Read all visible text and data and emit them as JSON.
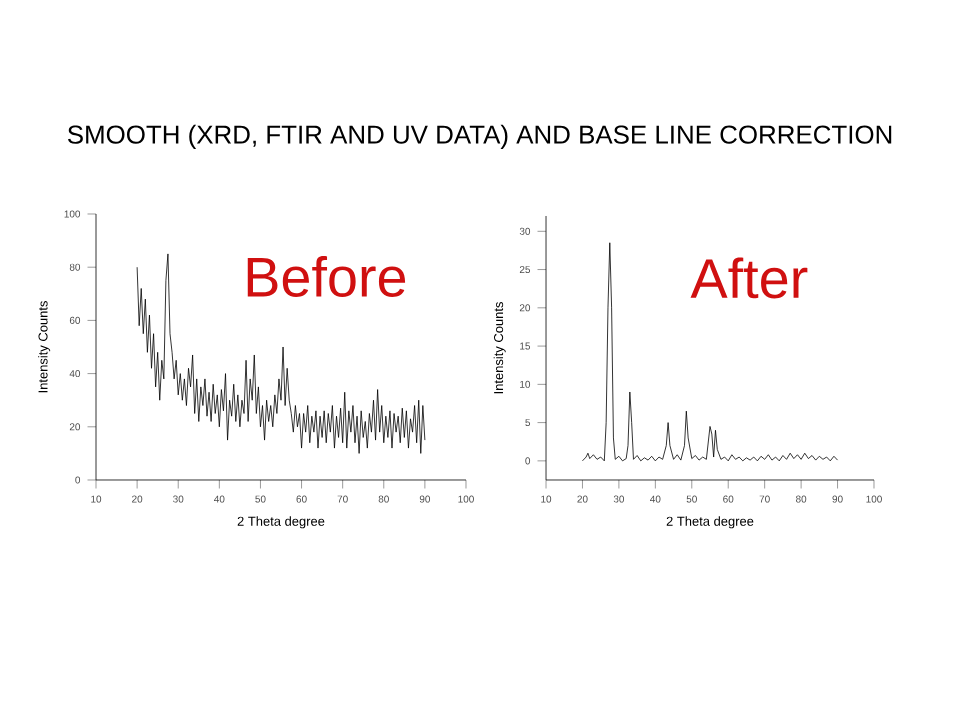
{
  "chart_data": [
    {
      "type": "line",
      "title": "Before",
      "xlabel": "2 Theta degree",
      "ylabel": "Intensity Counts",
      "annotations": [
        "SMOOTH (XRD, FTIR AND UV DATA) AND BASE LINE CORRECTION"
      ],
      "xlim": [
        10,
        100
      ],
      "xticks": [
        10,
        20,
        30,
        40,
        50,
        60,
        70,
        80,
        90,
        100
      ],
      "ylim": [
        0,
        100
      ],
      "yticks": [
        0,
        20,
        40,
        60,
        80,
        100
      ],
      "x": [
        20,
        20.5,
        21,
        21.5,
        22,
        22.5,
        23,
        23.5,
        24,
        24.5,
        25,
        25.5,
        26,
        26.5,
        27,
        27.5,
        28,
        28.5,
        29,
        29.5,
        30,
        30.5,
        31,
        31.5,
        32,
        32.5,
        33,
        33.5,
        34,
        34.5,
        35,
        35.5,
        36,
        36.5,
        37,
        37.5,
        38,
        38.5,
        39,
        39.5,
        40,
        40.5,
        41,
        41.5,
        42,
        42.5,
        43,
        43.5,
        44,
        44.5,
        45,
        45.5,
        46,
        46.5,
        47,
        47.5,
        48,
        48.5,
        49,
        49.5,
        50,
        50.5,
        51,
        51.5,
        52,
        52.5,
        53,
        53.5,
        54,
        54.5,
        55,
        55.5,
        56,
        56.5,
        57,
        57.5,
        58,
        58.5,
        59,
        59.5,
        60,
        60.5,
        61,
        61.5,
        62,
        62.5,
        63,
        63.5,
        64,
        64.5,
        65,
        65.5,
        66,
        66.5,
        67,
        67.5,
        68,
        68.5,
        69,
        69.5,
        70,
        70.5,
        71,
        71.5,
        72,
        72.5,
        73,
        73.5,
        74,
        74.5,
        75,
        75.5,
        76,
        76.5,
        77,
        77.5,
        78,
        78.5,
        79,
        79.5,
        80,
        80.5,
        81,
        81.5,
        82,
        82.5,
        83,
        83.5,
        84,
        84.5,
        85,
        85.5,
        86,
        86.5,
        87,
        87.5,
        88,
        88.5,
        89,
        89.5,
        90
      ],
      "series": [
        {
          "color": "#000000",
          "values": [
            80,
            58,
            72,
            55,
            68,
            48,
            62,
            42,
            55,
            35,
            48,
            30,
            45,
            38,
            75,
            85,
            55,
            48,
            38,
            45,
            32,
            40,
            30,
            38,
            28,
            42,
            35,
            47,
            25,
            38,
            22,
            35,
            28,
            38,
            24,
            33,
            22,
            36,
            25,
            32,
            20,
            34,
            26,
            40,
            15,
            30,
            24,
            36,
            22,
            32,
            20,
            30,
            25,
            45,
            22,
            38,
            30,
            47,
            25,
            35,
            20,
            28,
            15,
            30,
            22,
            28,
            20,
            32,
            25,
            38,
            30,
            50,
            28,
            42,
            30,
            25,
            18,
            28,
            20,
            25,
            12,
            25,
            18,
            28,
            14,
            24,
            18,
            26,
            12,
            24,
            16,
            26,
            14,
            25,
            18,
            28,
            12,
            24,
            16,
            27,
            14,
            33,
            12,
            26,
            18,
            28,
            14,
            24,
            10,
            26,
            16,
            22,
            12,
            25,
            18,
            30,
            15,
            34,
            18,
            28,
            14,
            24,
            16,
            26,
            12,
            25,
            18,
            24,
            14,
            27,
            16,
            26,
            12,
            23,
            18,
            28,
            14,
            30,
            10,
            28,
            15
          ]
        }
      ]
    },
    {
      "type": "line",
      "title": "After",
      "xlabel": "2 Theta degree",
      "ylabel": "Intensity Counts",
      "xlim": [
        10,
        100
      ],
      "xticks": [
        10,
        20,
        30,
        40,
        50,
        60,
        70,
        80,
        90,
        100
      ],
      "ylim": [
        -2.5,
        32
      ],
      "yticks": [
        0,
        5,
        10,
        15,
        20,
        25,
        30
      ],
      "x": [
        20,
        21,
        21.5,
        22,
        23,
        24,
        25,
        26,
        26.5,
        27,
        27.5,
        28,
        28.5,
        29,
        30,
        31,
        32,
        32.5,
        33,
        33.5,
        34,
        35,
        36,
        37,
        38,
        39,
        40,
        41,
        42,
        43,
        43.5,
        44,
        45,
        46,
        47,
        48,
        48.5,
        49,
        50,
        51,
        52,
        53,
        54,
        55,
        55.5,
        56,
        56.5,
        57,
        58,
        59,
        60,
        61,
        62,
        63,
        64,
        65,
        66,
        67,
        68,
        69,
        70,
        71,
        72,
        73,
        74,
        75,
        76,
        77,
        78,
        79,
        80,
        81,
        82,
        83,
        84,
        85,
        86,
        87,
        88,
        89,
        90
      ],
      "series": [
        {
          "color": "#000000",
          "values": [
            0,
            0.5,
            1,
            0.3,
            0.8,
            0.2,
            0.5,
            0,
            5,
            20,
            28.5,
            20,
            3,
            0.2,
            0.6,
            0,
            0.3,
            2,
            9,
            5,
            0.2,
            0.7,
            0,
            0.4,
            0.1,
            0.6,
            0,
            0.5,
            0.2,
            2,
            5,
            2,
            0.2,
            0.8,
            0.1,
            2,
            6.5,
            3,
            0.3,
            0.7,
            0.1,
            0.5,
            0.2,
            4.5,
            3.5,
            0.5,
            4,
            1.5,
            0.2,
            0.5,
            0,
            0.8,
            0.2,
            0.5,
            0,
            0.4,
            0.1,
            0.5,
            0,
            0.6,
            0.2,
            0.8,
            0.1,
            0.5,
            0,
            0.7,
            0.2,
            1,
            0.3,
            0.8,
            0.2,
            1,
            0.3,
            0.7,
            0.1,
            0.6,
            0.2,
            0.5,
            0,
            0.6,
            0.1
          ]
        }
      ]
    }
  ]
}
